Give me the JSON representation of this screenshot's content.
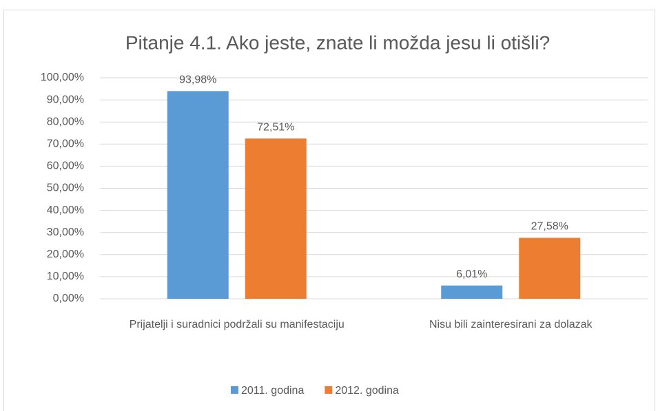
{
  "chart_data": {
    "type": "bar",
    "title": "Pitanje 4.1. Ako jeste, znate li možda jesu li otišli?",
    "categories": [
      "Prijatelji i suradnici podržali su manifestaciju",
      "Nisu bili zainteresirani za dolazak"
    ],
    "series": [
      {
        "name": "2011. godina",
        "color": "#5b9bd5",
        "values": [
          93.98,
          6.01
        ],
        "value_labels": [
          "93,98%",
          "6,01%"
        ]
      },
      {
        "name": "2012. godina",
        "color": "#ed7d31",
        "values": [
          72.51,
          27.58
        ],
        "value_labels": [
          "72,51%",
          "27,58%"
        ]
      }
    ],
    "ylim": [
      0,
      100
    ],
    "yticks": [
      {
        "value": 0,
        "label": "0,00%"
      },
      {
        "value": 10,
        "label": "10,00%"
      },
      {
        "value": 20,
        "label": "20,00%"
      },
      {
        "value": 30,
        "label": "30,00%"
      },
      {
        "value": 40,
        "label": "40,00%"
      },
      {
        "value": 50,
        "label": "50,00%"
      },
      {
        "value": 60,
        "label": "60,00%"
      },
      {
        "value": 70,
        "label": "70,00%"
      },
      {
        "value": 80,
        "label": "80,00%"
      },
      {
        "value": 90,
        "label": "90,00%"
      },
      {
        "value": 100,
        "label": "100,00%"
      }
    ],
    "grid": true,
    "legend": "bottom"
  }
}
